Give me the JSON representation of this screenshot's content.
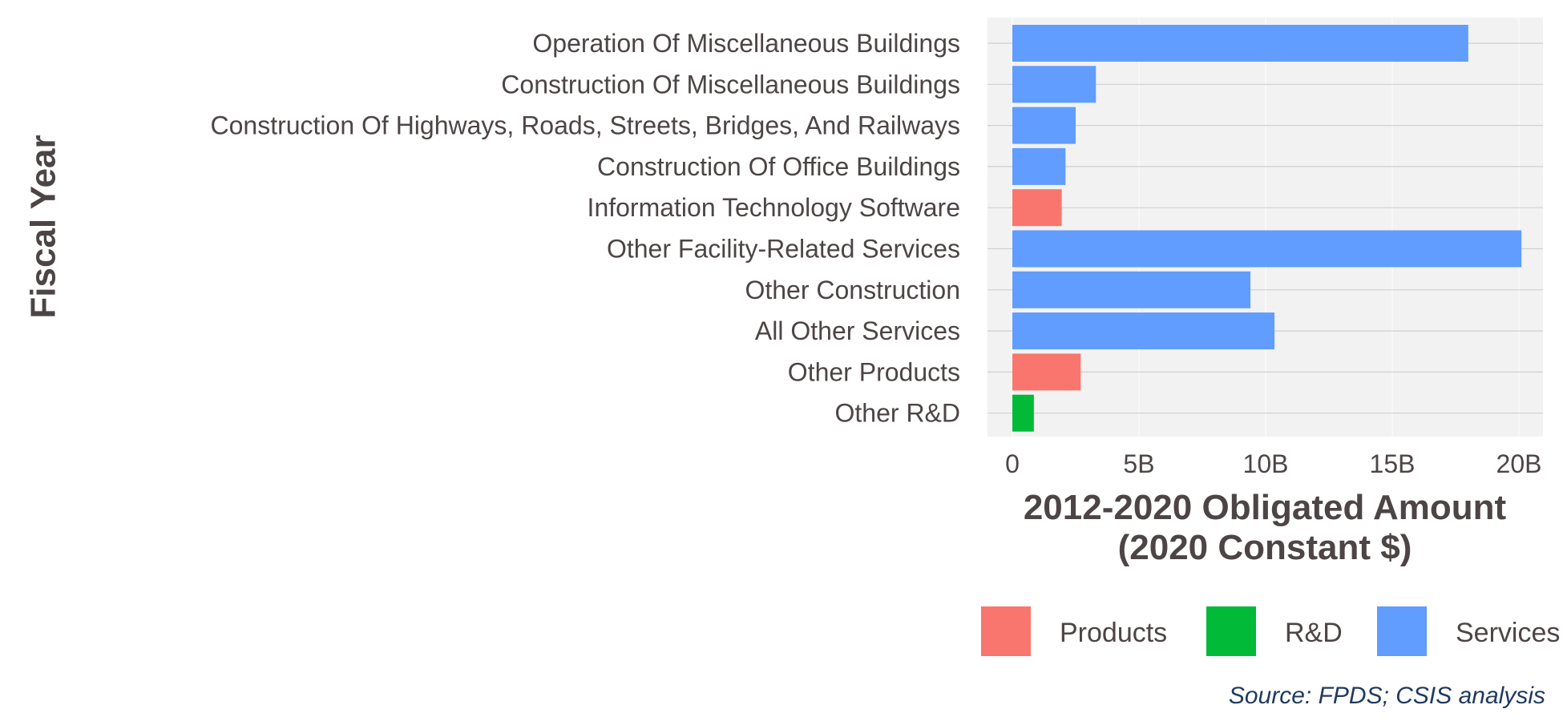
{
  "chart_data": {
    "type": "bar",
    "orientation": "horizontal",
    "ylabel": "Fiscal Year",
    "xlabel_line1": "2012-2020 Obligated Amount",
    "xlabel_line2": "(2020 Constant $)",
    "xlim": [
      0,
      20.5
    ],
    "x_ticks": [
      0,
      5,
      10,
      15,
      20
    ],
    "x_tick_labels": [
      "0",
      "5B",
      "10B",
      "15B",
      "20B"
    ],
    "units": "billions",
    "grid": true,
    "legend_position": "bottom",
    "categories": [
      "Operation Of Miscellaneous Buildings",
      "Construction Of Miscellaneous Buildings",
      "Construction Of Highways, Roads, Streets, Bridges, And Railways",
      "Construction Of Office Buildings",
      "Information Technology Software",
      "Other Facility-Related Services",
      "Other Construction",
      "All Other Services",
      "Other Products",
      "Other R&D"
    ],
    "values": [
      18.0,
      3.3,
      2.5,
      2.1,
      1.95,
      20.1,
      9.4,
      10.35,
      2.7,
      0.85
    ],
    "groups": [
      "Services",
      "Services",
      "Services",
      "Services",
      "Products",
      "Services",
      "Services",
      "Services",
      "Products",
      "R&D"
    ],
    "legend": [
      {
        "name": "Products",
        "color": "#f8766d"
      },
      {
        "name": "R&D",
        "color": "#00ba38"
      },
      {
        "name": "Services",
        "color": "#619cff"
      }
    ],
    "source": "Source: FPDS; CSIS analysis"
  }
}
